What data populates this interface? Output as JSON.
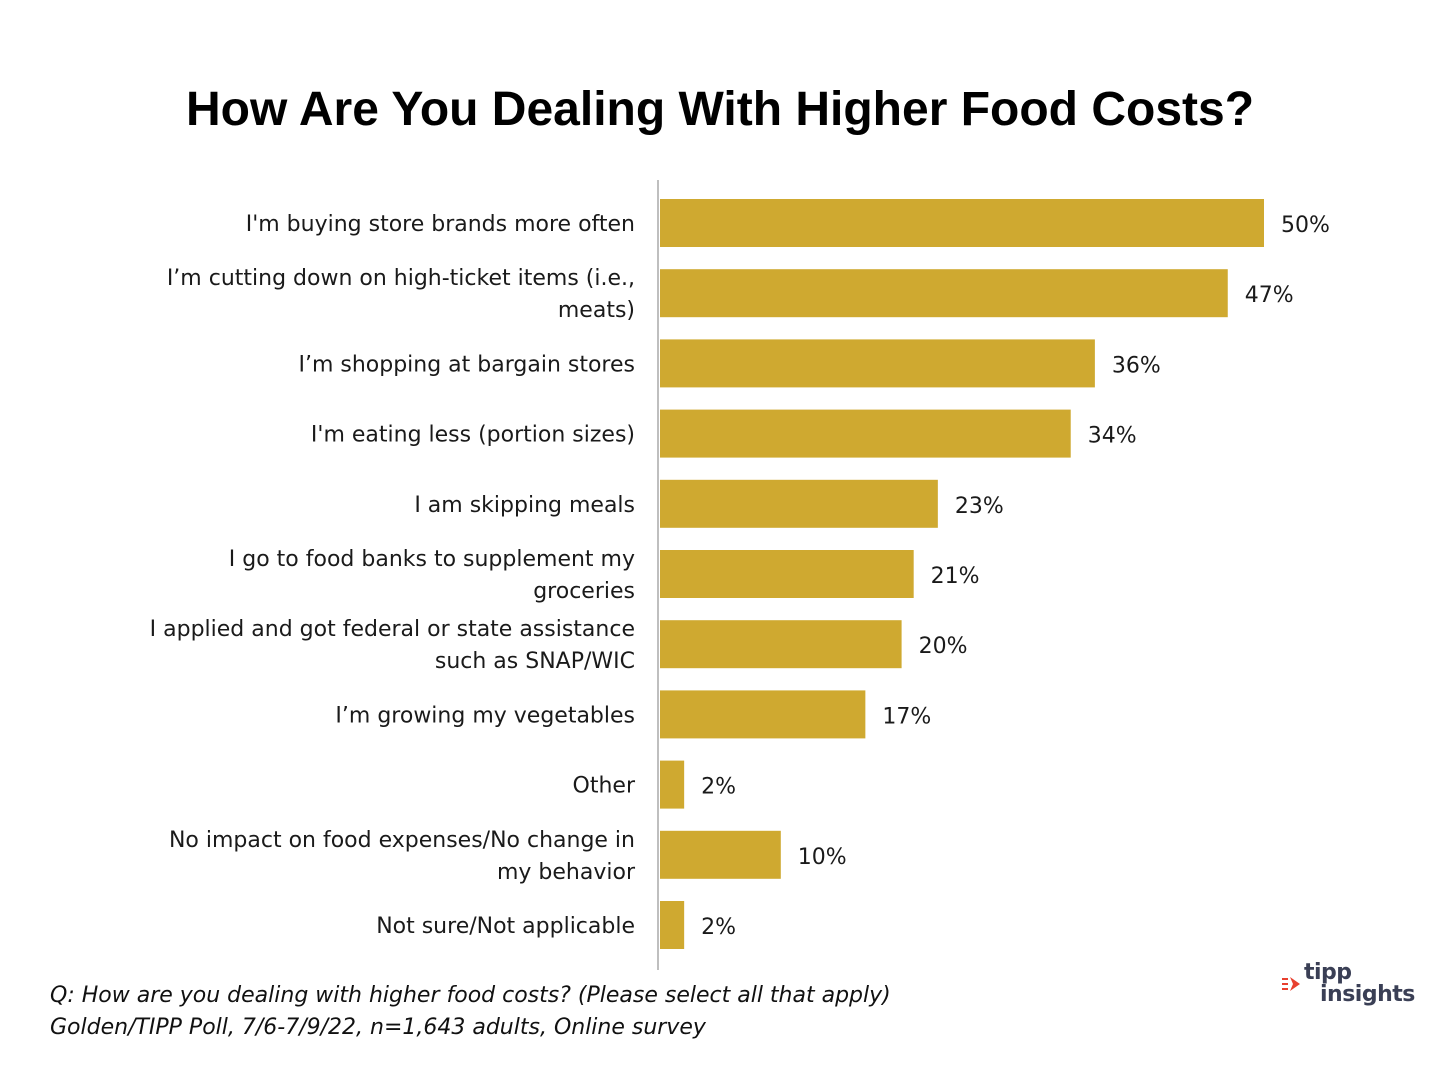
{
  "chart_data": {
    "type": "bar",
    "orientation": "horizontal",
    "title": "How Are You Dealing With Higher Food Costs?",
    "categories": [
      "I'm buying store brands more often",
      "I’m cutting down on high-ticket items (i.e., meats)",
      "I’m shopping at bargain stores",
      "I'm eating less (portion sizes)",
      "I am skipping meals",
      "I go to food banks to supplement my groceries",
      "I applied and got federal or state assistance such as SNAP/WIC",
      "I’m growing my vegetables",
      "Other",
      "No impact on food expenses/No change in my behavior",
      "Not sure/Not applicable"
    ],
    "category_lines": [
      [
        "I'm buying store brands more often"
      ],
      [
        "I’m cutting down on high-ticket items (i.e.,",
        "meats)"
      ],
      [
        "I’m shopping at bargain stores"
      ],
      [
        "I'm eating less (portion sizes)"
      ],
      [
        "I am skipping meals"
      ],
      [
        "I go to food banks to supplement my",
        "groceries"
      ],
      [
        "I applied and got federal or state assistance",
        "such as SNAP/WIC"
      ],
      [
        "I’m growing my vegetables"
      ],
      [
        "Other"
      ],
      [
        "No impact on food expenses/No change in",
        "my behavior"
      ],
      [
        "Not sure/Not applicable"
      ]
    ],
    "values": [
      50,
      47,
      36,
      34,
      23,
      21,
      20,
      17,
      2,
      10,
      2
    ],
    "value_labels": [
      "50%",
      "47%",
      "36%",
      "34%",
      "23%",
      "21%",
      "20%",
      "17%",
      "2%",
      "10%",
      "2%"
    ],
    "unit": "%",
    "xlim": [
      0,
      50
    ],
    "bar_color": "#CFA930",
    "axis_color": "#bfbfbf",
    "grid": false,
    "legend": "none"
  },
  "footnote": {
    "question": "Q:  How are you dealing with higher food costs? (Please select all that apply)",
    "source": "Golden/TIPP Poll, 7/6-7/9/22, n=1,643 adults, Online survey"
  },
  "logo": {
    "line1": "tipp",
    "line2": "insights",
    "arrow_color": "#e8402f",
    "text_color": "#3a3f55"
  }
}
